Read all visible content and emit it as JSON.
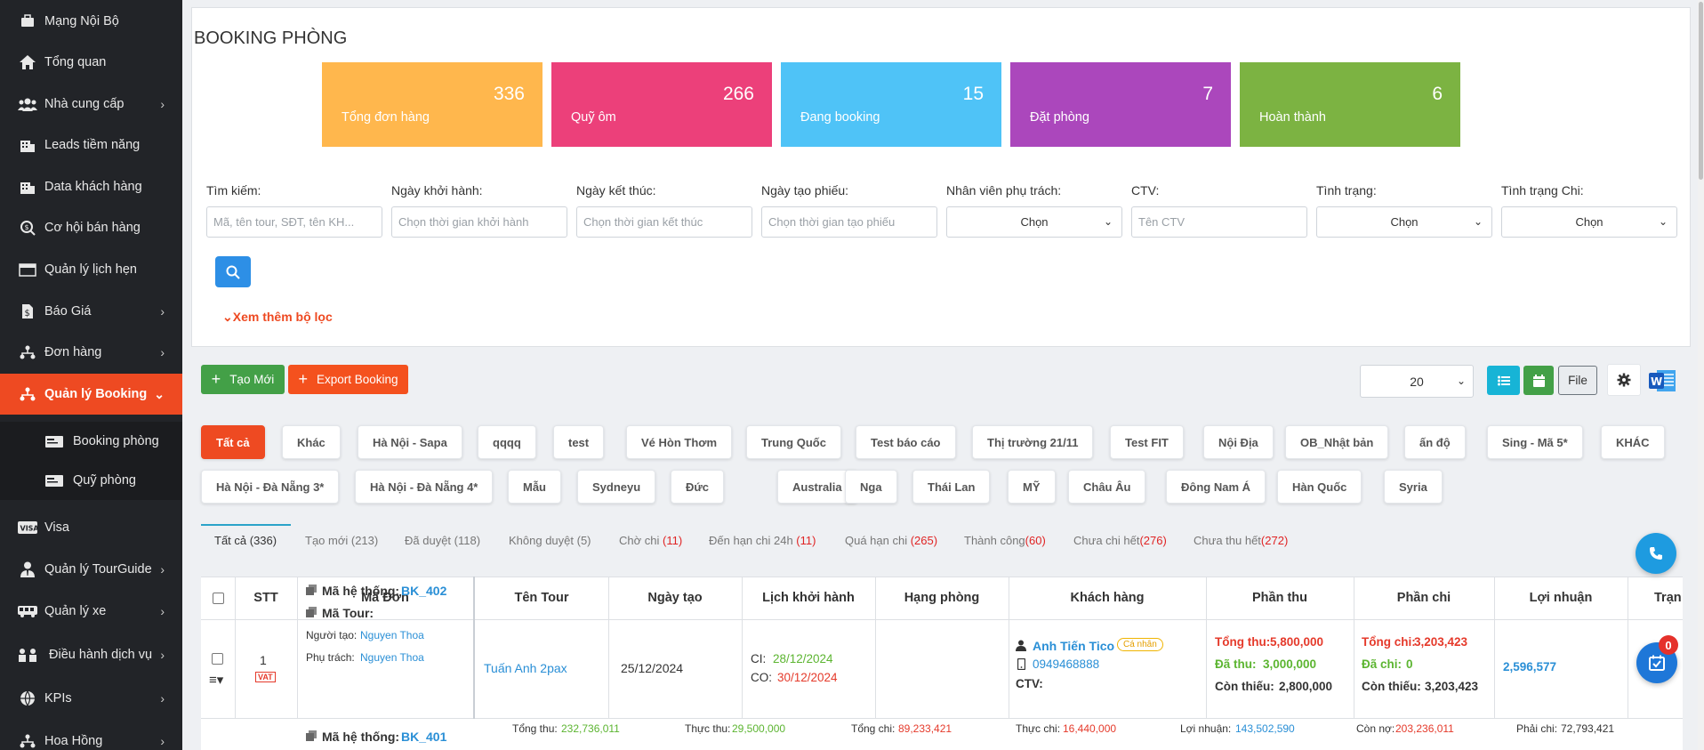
{
  "colors": {
    "sidebar_bg": "#222428",
    "accent": "#ee4a22",
    "card_orange": "#ffb74d",
    "card_pink": "#ec407a",
    "card_blue": "#4fc3f7",
    "card_purple": "#ab47bc",
    "card_green": "#7cb342"
  },
  "sidebar": {
    "items": [
      {
        "label": "Mạng Nội Bộ",
        "icon": "briefcase-icon",
        "arrow": ""
      },
      {
        "label": "Tổng quan",
        "icon": "home-icon",
        "arrow": ""
      },
      {
        "label": "Nhà cung cấp",
        "icon": "users-icon",
        "arrow": "›"
      },
      {
        "label": "Leads tiềm năng",
        "icon": "building-icon",
        "arrow": ""
      },
      {
        "label": "Data khách hàng",
        "icon": "building-icon",
        "arrow": ""
      },
      {
        "label": "Cơ hội bán hàng",
        "icon": "search-dollar-icon",
        "arrow": ""
      },
      {
        "label": "Quản lý lịch hẹn",
        "icon": "calendar-icon",
        "arrow": ""
      },
      {
        "label": "Báo Giá",
        "icon": "file-dollar-icon",
        "arrow": "›"
      },
      {
        "label": "Đơn hàng",
        "icon": "sitemap-icon",
        "arrow": "›"
      },
      {
        "label": "Quản lý Booking",
        "icon": "sitemap-icon",
        "arrow": "⌄"
      },
      {
        "label": "Visa",
        "icon": "visa-icon",
        "arrow": ""
      },
      {
        "label": "Quản lý TourGuide",
        "icon": "user-tie-icon",
        "arrow": "›"
      },
      {
        "label": "Quản lý xe",
        "icon": "bus-icon",
        "arrow": "›"
      },
      {
        "label": "Điều hành dịch vụ",
        "icon": "people-icon",
        "arrow": "›"
      },
      {
        "label": "KPIs",
        "icon": "globe-icon",
        "arrow": "›"
      },
      {
        "label": "Hoa Hồng",
        "icon": "sitemap-icon",
        "arrow": "›"
      }
    ],
    "subitems": [
      {
        "label": "Booking phòng"
      },
      {
        "label": "Quỹ phòng"
      }
    ]
  },
  "page": {
    "title": "BOOKING PHÒNG"
  },
  "stats": [
    {
      "value": "336",
      "label": "Tổng đơn hàng"
    },
    {
      "value": "266",
      "label": "Quỹ ôm"
    },
    {
      "value": "15",
      "label": "Đang booking"
    },
    {
      "value": "7",
      "label": "Đặt phòng"
    },
    {
      "value": "6",
      "label": "Hoàn thành"
    }
  ],
  "filters": [
    {
      "label": "Tìm kiếm:",
      "placeholder": "Mã, tên tour, SĐT, tên KH..."
    },
    {
      "label": "Ngày khởi hành:",
      "placeholder": "Chọn thời gian khởi hành"
    },
    {
      "label": "Ngày kết thúc:",
      "placeholder": "Chọn thời gian kết thúc"
    },
    {
      "label": "Ngày tạo phiếu:",
      "placeholder": "Chọn thời gian tạo phiếu"
    },
    {
      "label": "Nhân viên phụ trách:",
      "value": "Chọn"
    },
    {
      "label": "CTV:",
      "placeholder": "Tên CTV"
    },
    {
      "label": "Tình trạng:",
      "value": "Chọn"
    },
    {
      "label": "Tình trạng Chi:",
      "value": "Chọn"
    }
  ],
  "more_filters": "Xem thêm bộ lọc",
  "toolbar": {
    "create": "Tạo Mới",
    "export": "Export Booking",
    "per_page": "20",
    "file": "File"
  },
  "chips_row1": [
    "Tất cả",
    "Khác",
    "Hà Nội - Sapa",
    "qqqq",
    "test",
    "Vé Hòn Thơm",
    "Trung Quốc",
    "Test báo cáo",
    "Thị trường 21/11",
    "Test FIT",
    "Nội Địa",
    "OB_Nhật bản",
    "ấn độ",
    "Sing - Mã 5*",
    "KHÁC"
  ],
  "chips_row2": [
    "Hà Nội - Đà Nẵng 3*",
    "Hà Nội - Đà Nẵng 4*",
    "Mẫu",
    "Sydneyu",
    "Đức",
    "Australia",
    "Nga",
    "Thái Lan",
    "MỸ",
    "Châu Âu",
    "Đông Nam Á",
    "Hàn Quốc",
    "Syria"
  ],
  "status_tabs": [
    {
      "label": "Tất cả (336)",
      "count": ""
    },
    {
      "label": "Tạo mới (213)",
      "count": ""
    },
    {
      "label": "Đã duyệt (118)",
      "count": ""
    },
    {
      "label": "Không duyệt (5)",
      "count": ""
    },
    {
      "label": "Chờ chi ",
      "count": "(11)"
    },
    {
      "label": "Đến hạn chi 24h ",
      "count": "(11)"
    },
    {
      "label": "Quá hạn chi ",
      "count": "(265)"
    },
    {
      "label": "Thành công",
      "count": "(60)"
    },
    {
      "label": "Chưa chi hết",
      "count": "(276)"
    },
    {
      "label": "Chưa thu hết",
      "count": "(272)"
    }
  ],
  "table": {
    "headers": [
      "STT",
      "Mã Đơn",
      "Tên Tour",
      "Ngày tạo",
      "Lịch khởi hành",
      "Hạng phòng",
      "Khách hàng",
      "Phần thu",
      "Phần chi",
      "Lợi nhuận",
      "Trạn"
    ],
    "row1": {
      "stt": "1",
      "vat": "VAT",
      "sys_code_label": "Mã hệ thống:",
      "sys_code": "BK_402",
      "tour_code_label": "Mã Tour:",
      "creator_label": "Người tạo:",
      "creator": "Nguyen Thoa",
      "owner_label": "Phụ trách:",
      "owner": "Nguyen Thoa",
      "tour_name": "Tuấn Anh 2pax",
      "created": "25/12/2024",
      "ci_label": "CI:",
      "ci": "28/12/2024",
      "co_label": "CO:",
      "co": "30/12/2024",
      "customer": "Anh Tiến Tico",
      "customer_badge": "Cá nhân",
      "phone": "0949468888",
      "ctv_label": "CTV:",
      "total_in_label": "Tổng thu:",
      "total_in": "5,800,000",
      "paid_in_label": "Đã thu:",
      "paid_in": "3,000,000",
      "remain_in_label": "Còn thiếu:",
      "remain_in": "2,800,000",
      "total_out_label": "Tổng chi:",
      "total_out": "3,203,423",
      "paid_out_label": "Đã chi:",
      "paid_out": "0",
      "remain_out_label": "Còn thiếu:",
      "remain_out": "3,203,423",
      "profit": "2,596,577"
    },
    "row2": {
      "sys_code_label": "Mã hệ thống:",
      "sys_code": "BK_401"
    },
    "summary": {
      "total_in_label": "Tổng thu:",
      "total_in": "232,736,011",
      "real_in_label": "Thực thu:",
      "real_in": "29,500,000",
      "total_out_label": "Tổng chi:",
      "total_out": "89,233,421",
      "real_out_label": "Thực chi:",
      "real_out": "16,440,000",
      "profit_label": "Lợi nhuận:",
      "profit": "143,502,590",
      "debt_label": "Còn nợ:",
      "debt": "203,236,011",
      "must_pay_label": "Phải chi:",
      "must_pay": "72,793,421"
    }
  },
  "notification_count": "0"
}
